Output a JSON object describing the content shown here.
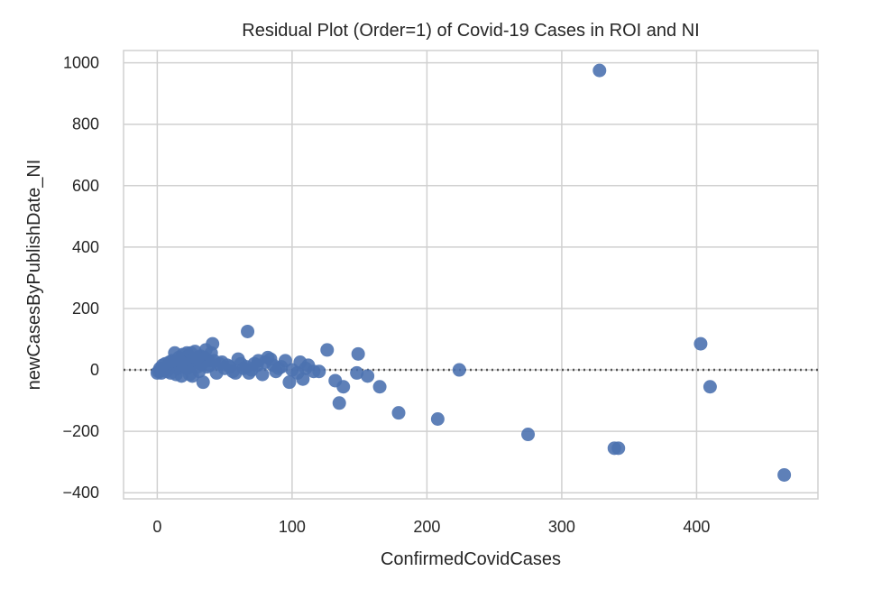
{
  "chart_data": {
    "type": "scatter",
    "title": "Residual Plot (Order=1) of  Covid-19 Cases in ROI and NI",
    "xlabel": "ConfirmedCovidCases",
    "ylabel": "newCasesByPublishDate_NI",
    "xlim": [
      -25,
      490
    ],
    "ylim": [
      -420,
      1040
    ],
    "xticks": [
      0,
      100,
      200,
      300,
      400
    ],
    "xtick_labels": [
      "0",
      "100",
      "200",
      "300",
      "400"
    ],
    "yticks": [
      -400,
      -200,
      0,
      200,
      400,
      600,
      800,
      1000
    ],
    "ytick_labels": [
      "−400",
      "−200",
      "0",
      "200",
      "400",
      "600",
      "800",
      "1000"
    ],
    "grid": true,
    "reference_line": {
      "y": 0,
      "style": "dotted"
    },
    "colors": {
      "points": "#4c72b0",
      "grid": "#d0d0d0",
      "reference": "#555555",
      "frame": "#d0d0d0"
    },
    "points": [
      {
        "x": 328,
        "y": 975
      },
      {
        "x": 67,
        "y": 125
      },
      {
        "x": 403,
        "y": 85
      },
      {
        "x": 41,
        "y": 85
      },
      {
        "x": 126,
        "y": 65
      },
      {
        "x": 149,
        "y": 52
      },
      {
        "x": 224,
        "y": 0
      },
      {
        "x": 410,
        "y": -55
      },
      {
        "x": 132,
        "y": -35
      },
      {
        "x": 138,
        "y": -55
      },
      {
        "x": 165,
        "y": -55
      },
      {
        "x": 135,
        "y": -108
      },
      {
        "x": 179,
        "y": -140
      },
      {
        "x": 208,
        "y": -160
      },
      {
        "x": 275,
        "y": -210
      },
      {
        "x": 339,
        "y": -255
      },
      {
        "x": 342,
        "y": -255
      },
      {
        "x": 465,
        "y": -342
      },
      {
        "x": 148,
        "y": -10
      },
      {
        "x": 156,
        "y": -20
      },
      {
        "x": 120,
        "y": -5
      },
      {
        "x": 112,
        "y": 15
      },
      {
        "x": 106,
        "y": 25
      },
      {
        "x": 108,
        "y": -30
      },
      {
        "x": 98,
        "y": -40
      },
      {
        "x": 95,
        "y": 30
      },
      {
        "x": 90,
        "y": 5
      },
      {
        "x": 86,
        "y": 15
      },
      {
        "x": 82,
        "y": 40
      },
      {
        "x": 78,
        "y": -15
      },
      {
        "x": 75,
        "y": 30
      },
      {
        "x": 72,
        "y": 20
      },
      {
        "x": 68,
        "y": -10
      },
      {
        "x": 64,
        "y": 5
      },
      {
        "x": 60,
        "y": 35
      },
      {
        "x": 56,
        "y": -5
      },
      {
        "x": 52,
        "y": 15
      },
      {
        "x": 48,
        "y": 25
      },
      {
        "x": 44,
        "y": -10
      },
      {
        "x": 40,
        "y": 55
      },
      {
        "x": 38,
        "y": 30
      },
      {
        "x": 36,
        "y": 65
      },
      {
        "x": 34,
        "y": -40
      },
      {
        "x": 32,
        "y": 45
      },
      {
        "x": 30,
        "y": 10
      },
      {
        "x": 28,
        "y": 60
      },
      {
        "x": 26,
        "y": 20
      },
      {
        "x": 24,
        "y": -15
      },
      {
        "x": 22,
        "y": 55
      },
      {
        "x": 20,
        "y": 35
      },
      {
        "x": 18,
        "y": -20
      },
      {
        "x": 16,
        "y": 40
      },
      {
        "x": 15,
        "y": 5
      },
      {
        "x": 13,
        "y": 55
      },
      {
        "x": 12,
        "y": 20
      },
      {
        "x": 10,
        "y": -10
      },
      {
        "x": 9,
        "y": 25
      },
      {
        "x": 8,
        "y": 10
      },
      {
        "x": 7,
        "y": -5
      },
      {
        "x": 6,
        "y": 20
      },
      {
        "x": 5,
        "y": 0
      },
      {
        "x": 4,
        "y": 15
      },
      {
        "x": 3,
        "y": -10
      },
      {
        "x": 2,
        "y": 5
      },
      {
        "x": 1,
        "y": -5
      },
      {
        "x": 0,
        "y": -10
      },
      {
        "x": 19,
        "y": 50
      },
      {
        "x": 21,
        "y": 10
      },
      {
        "x": 23,
        "y": 45
      },
      {
        "x": 25,
        "y": 55
      },
      {
        "x": 27,
        "y": 35
      },
      {
        "x": 29,
        "y": 25
      },
      {
        "x": 31,
        "y": -5
      },
      {
        "x": 33,
        "y": 20
      },
      {
        "x": 35,
        "y": 40
      },
      {
        "x": 37,
        "y": 10
      },
      {
        "x": 39,
        "y": 15
      },
      {
        "x": 42,
        "y": 30
      },
      {
        "x": 46,
        "y": 20
      },
      {
        "x": 50,
        "y": 5
      },
      {
        "x": 54,
        "y": 10
      },
      {
        "x": 58,
        "y": -10
      },
      {
        "x": 62,
        "y": 20
      },
      {
        "x": 66,
        "y": 10
      },
      {
        "x": 70,
        "y": 0
      },
      {
        "x": 74,
        "y": 15
      },
      {
        "x": 80,
        "y": 25
      },
      {
        "x": 84,
        "y": 35
      },
      {
        "x": 88,
        "y": -5
      },
      {
        "x": 92,
        "y": 10
      },
      {
        "x": 100,
        "y": 0
      },
      {
        "x": 104,
        "y": -10
      },
      {
        "x": 110,
        "y": 5
      },
      {
        "x": 116,
        "y": -5
      },
      {
        "x": 14,
        "y": -15
      },
      {
        "x": 17,
        "y": 10
      },
      {
        "x": 11,
        "y": 30
      },
      {
        "x": 26,
        "y": -20
      },
      {
        "x": 30,
        "y": 40
      },
      {
        "x": 22,
        "y": 5
      },
      {
        "x": 18,
        "y": 25
      }
    ]
  }
}
